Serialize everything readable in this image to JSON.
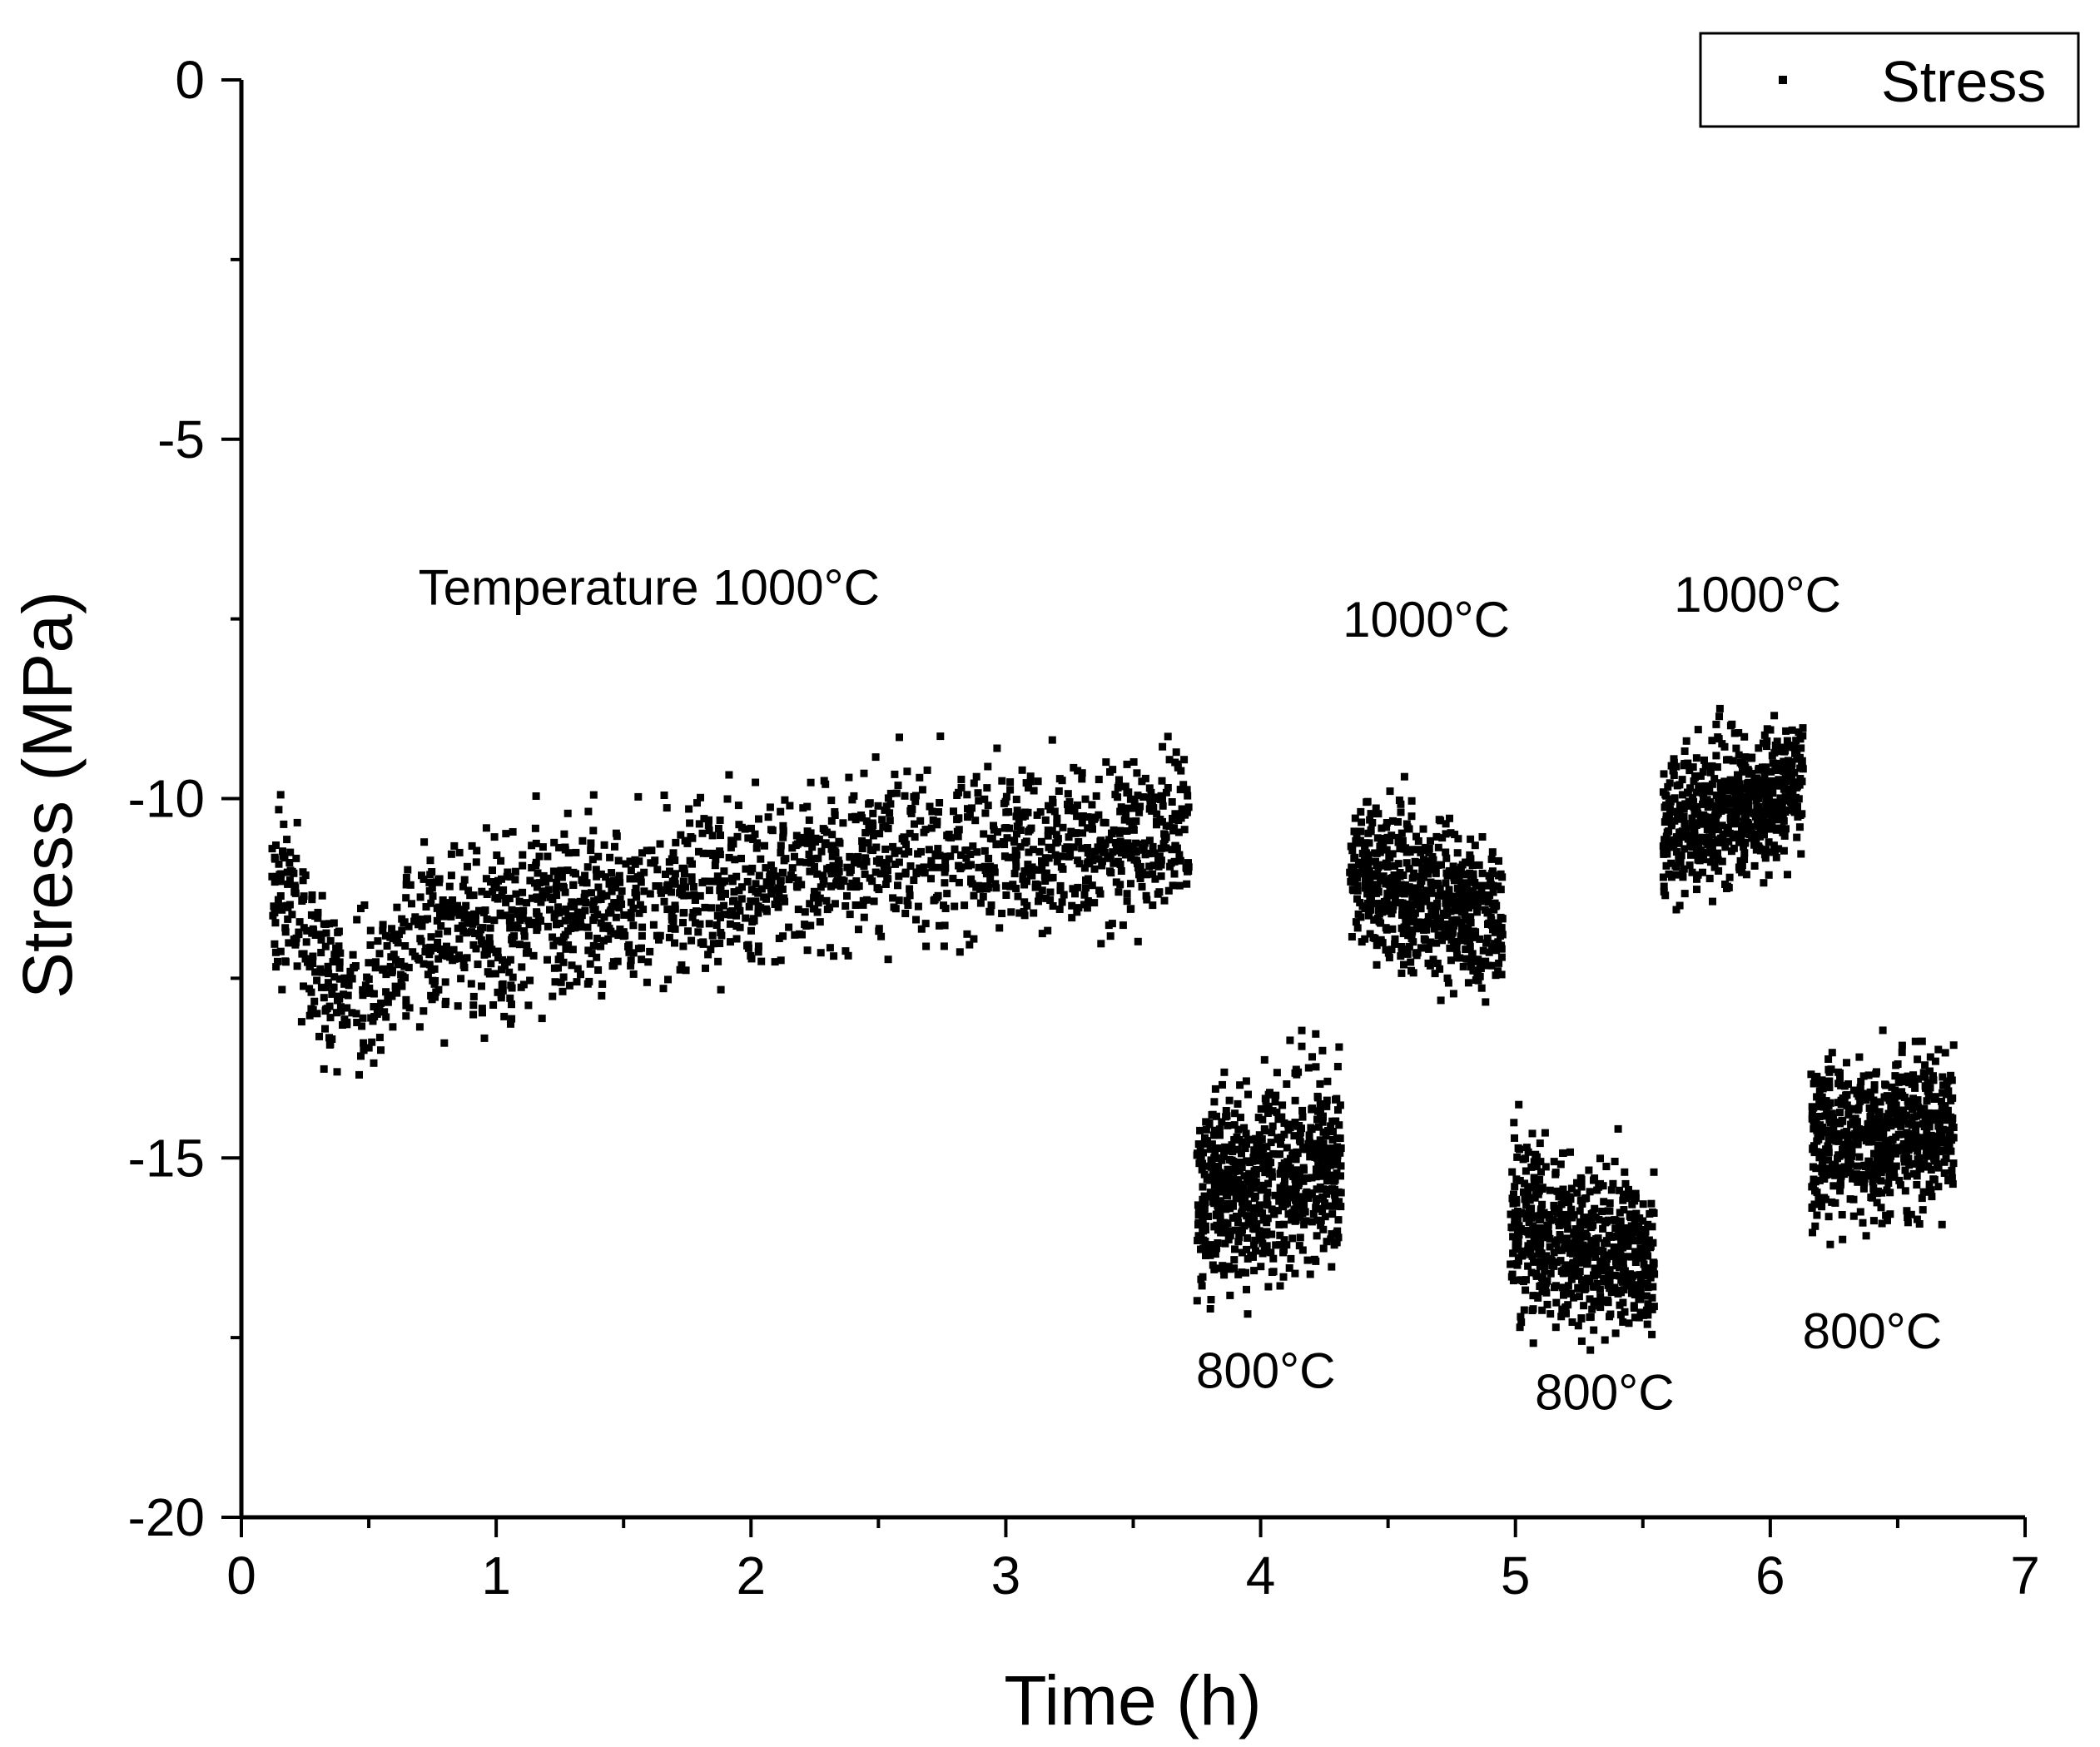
{
  "chart_data": {
    "type": "scatter",
    "title": "",
    "xlabel": "Time (h)",
    "ylabel": "Stress (MPa)",
    "xlim": [
      0,
      7
    ],
    "ylim": [
      -20,
      0
    ],
    "xticks": [
      0,
      1,
      2,
      3,
      4,
      5,
      6,
      7
    ],
    "yticks": [
      0,
      -5,
      -10,
      -15,
      -20
    ],
    "grid": false,
    "legend": {
      "position": "top-right",
      "entries": [
        "Stress"
      ]
    },
    "annotations": [
      {
        "text": "Temperature 1000°C",
        "x": 1.6,
        "y": -7.3
      },
      {
        "text": "1000°C",
        "x": 4.65,
        "y": -7.75
      },
      {
        "text": "1000°C",
        "x": 5.95,
        "y": -7.4
      },
      {
        "text": "800°C",
        "x": 4.02,
        "y": -18.2
      },
      {
        "text": "800°C",
        "x": 5.35,
        "y": -18.5
      },
      {
        "text": "800°C",
        "x": 6.4,
        "y": -17.65
      }
    ],
    "series": [
      {
        "name": "Stress",
        "marker": "square",
        "color": "#000000",
        "segments": [
          {
            "label": "1000°C",
            "t_start": 0.12,
            "t_end": 3.72,
            "trend_t": [
              0.12,
              0.2,
              0.3,
              0.45,
              0.6,
              0.8,
              1.0,
              1.3,
              1.6,
              1.9,
              2.2,
              2.5,
              2.8,
              3.1,
              3.4,
              3.72
            ],
            "trend_y": [
              -11.0,
              -11.6,
              -12.4,
              -12.8,
              -12.3,
              -11.9,
              -11.8,
              -11.5,
              -11.4,
              -11.3,
              -11.0,
              -10.8,
              -10.7,
              -10.6,
              -10.6,
              -10.4
            ],
            "spread": 1.1,
            "count": 1900
          },
          {
            "label": "800°C",
            "t_start": 3.75,
            "t_end": 4.32,
            "trend_t": [
              3.75,
              4.32
            ],
            "trend_y": [
              -15.6,
              -15.0
            ],
            "spread": 1.3,
            "count": 700
          },
          {
            "label": "1000°C",
            "t_start": 4.35,
            "t_end": 4.95,
            "trend_t": [
              4.35,
              4.95
            ],
            "trend_y": [
              -11.0,
              -11.7
            ],
            "spread": 1.0,
            "count": 650
          },
          {
            "label": "800°C",
            "t_start": 4.98,
            "t_end": 5.55,
            "trend_t": [
              4.98,
              5.55
            ],
            "trend_y": [
              -15.9,
              -16.5
            ],
            "spread": 1.1,
            "count": 650
          },
          {
            "label": "1000°C",
            "t_start": 5.58,
            "t_end": 6.13,
            "trend_t": [
              5.58,
              6.13
            ],
            "trend_y": [
              -10.4,
              -9.8
            ],
            "spread": 0.95,
            "count": 650
          },
          {
            "label": "800°C",
            "t_start": 6.16,
            "t_end": 6.72,
            "trend_t": [
              6.16,
              6.72
            ],
            "trend_y": [
              -14.8,
              -14.6
            ],
            "spread": 1.05,
            "count": 650
          }
        ]
      }
    ]
  }
}
